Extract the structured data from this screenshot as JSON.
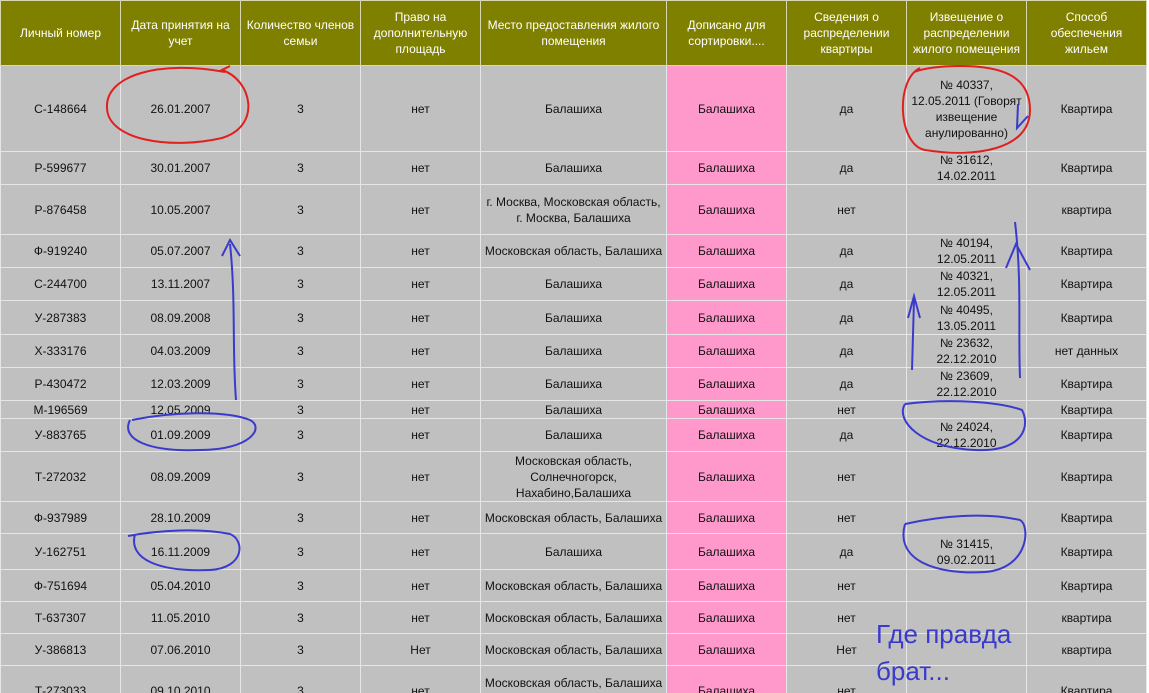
{
  "columns": [
    "Личный номер",
    "Дата принятия на учет",
    "Количество членов семьи",
    "Право на дополнительную площадь",
    "Место предоставления жилого помещения",
    "Дописано для сортировки....",
    "Сведения о распределении квартиры",
    "Извещение о распределении жилого помещения",
    "Способ обеспечения жильем"
  ],
  "rows": [
    {
      "id": "С-148664",
      "date": "26.01.2007",
      "members": "3",
      "extra": "нет",
      "place": "Балашиха",
      "sort": "Балашиха",
      "dist": "да",
      "notice": "№ 40337, 12.05.2011 (Говорят извещение анулированно)",
      "method": "Квартира"
    },
    {
      "id": "Р-599677",
      "date": "30.01.2007",
      "members": "3",
      "extra": "нет",
      "place": "Балашиха",
      "sort": "Балашиха",
      "dist": "да",
      "notice": "№ 31612, 14.02.2011",
      "method": "Квартира"
    },
    {
      "id": "Р-876458",
      "date": "10.05.2007",
      "members": "3",
      "extra": "нет",
      "place": "г. Москва, Московская область, г. Москва, Балашиха",
      "sort": "Балашиха",
      "dist": "нет",
      "notice": "",
      "method": "квартира"
    },
    {
      "id": "Ф-919240",
      "date": "05.07.2007",
      "members": "3",
      "extra": "нет",
      "place": "Московская область, Балашиха",
      "sort": "Балашиха",
      "dist": "да",
      "notice": "№ 40194, 12.05.2011",
      "method": "Квартира"
    },
    {
      "id": "С-244700",
      "date": "13.11.2007",
      "members": "3",
      "extra": "нет",
      "place": "Балашиха",
      "sort": "Балашиха",
      "dist": "да",
      "notice": "№ 40321, 12.05.2011",
      "method": "Квартира"
    },
    {
      "id": "У-287383",
      "date": "08.09.2008",
      "members": "3",
      "extra": "нет",
      "place": "Балашиха",
      "sort": "Балашиха",
      "dist": "да",
      "notice": "№ 40495, 13.05.2011",
      "method": "Квартира"
    },
    {
      "id": "Х-333176",
      "date": "04.03.2009",
      "members": "3",
      "extra": "нет",
      "place": "Балашиха",
      "sort": "Балашиха",
      "dist": "да",
      "notice": "№ 23632, 22.12.2010",
      "method": "нет данных"
    },
    {
      "id": "Р-430472",
      "date": "12.03.2009",
      "members": "3",
      "extra": "нет",
      "place": "Балашиха",
      "sort": "Балашиха",
      "dist": "да",
      "notice": "№ 23609, 22.12.2010",
      "method": "Квартира"
    },
    {
      "id": "М-196569",
      "date": "12.05.2009",
      "members": "3",
      "extra": "нет",
      "place": "Балашиха",
      "sort": "Балашиха",
      "dist": "нет",
      "notice": "",
      "method": "Квартира"
    },
    {
      "id": "У-883765",
      "date": "01.09.2009",
      "members": "3",
      "extra": "нет",
      "place": "Балашиха",
      "sort": "Балашиха",
      "dist": "да",
      "notice": "№ 24024, 22.12.2010",
      "method": "Квартира"
    },
    {
      "id": "Т-272032",
      "date": "08.09.2009",
      "members": "3",
      "extra": "нет",
      "place": "Московская область, Солнечногорск, Нахабино,Балашиха",
      "sort": "Балашиха",
      "dist": "нет",
      "notice": "",
      "method": "Квартира"
    },
    {
      "id": "Ф-937989",
      "date": "28.10.2009",
      "members": "3",
      "extra": "нет",
      "place": "Московская область, Балашиха",
      "sort": "Балашиха",
      "dist": "нет",
      "notice": "",
      "method": "Квартира"
    },
    {
      "id": "У-162751",
      "date": "16.11.2009",
      "members": "3",
      "extra": "нет",
      "place": "Балашиха",
      "sort": "Балашиха",
      "dist": "да",
      "notice": "№ 31415, 09.02.2011",
      "method": "Квартира"
    },
    {
      "id": "Ф-751694",
      "date": "05.04.2010",
      "members": "3",
      "extra": "нет",
      "place": "Московская область, Балашиха",
      "sort": "Балашиха",
      "dist": "нет",
      "notice": "",
      "method": "Квартира"
    },
    {
      "id": "Т-637307",
      "date": "11.05.2010",
      "members": "3",
      "extra": "нет",
      "place": "Московская область, Балашиха",
      "sort": "Балашиха",
      "dist": "нет",
      "notice": "",
      "method": "квартира"
    },
    {
      "id": "У-386813",
      "date": "07.06.2010",
      "members": "3",
      "extra": "Нет",
      "place": "Московская область, Балашиха",
      "sort": "Балашиха",
      "dist": "Нет",
      "notice": "",
      "method": "квартира"
    },
    {
      "id": "Т-273033",
      "date": "09.10.2010",
      "members": "3",
      "extra": "нет",
      "place": "Московская область, Балашиха Подольск",
      "sort": "Балашиха",
      "dist": "нет",
      "notice": "",
      "method": "Квартира"
    }
  ],
  "annotation": {
    "caption_line1": "Где правда",
    "caption_line2": "брат...",
    "ink_red": "#e02020",
    "ink_blue": "#3a3acc"
  }
}
